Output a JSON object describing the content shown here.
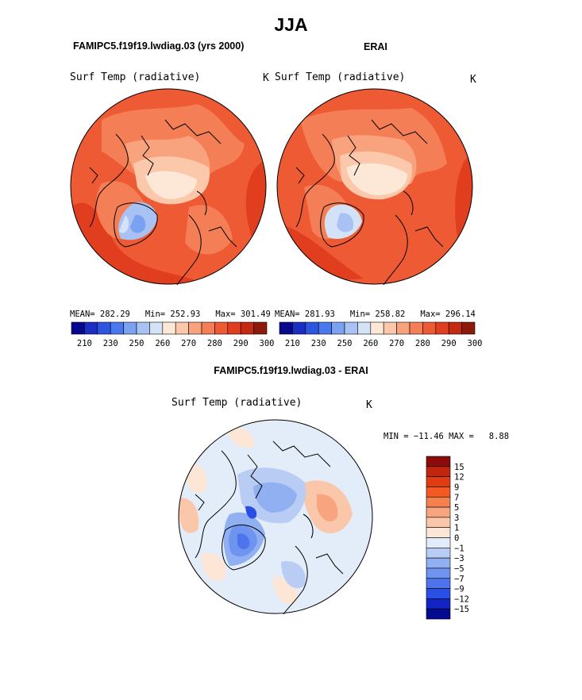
{
  "season": "JJA",
  "panels": [
    {
      "title": "FAMIPC5.f19f19.lwdiag.03 (yrs 2000)",
      "variable": "Surf Temp (radiative)",
      "units": "K",
      "stats": "MEAN= 282.29   Min= 252.93   Max= 301.49"
    },
    {
      "title": "ERAI",
      "variable": "Surf Temp (radiative)",
      "units": "K",
      "stats": "MEAN= 281.93   Min= 258.82   Max= 296.14"
    }
  ],
  "diff_panel": {
    "title": "FAMIPC5.f19f19.lwdiag.03 - ERAI",
    "variable": "Surf Temp (radiative)",
    "units": "K",
    "minmax": "MIN = −11.46 MAX =   8.88"
  },
  "abs_colorbar": {
    "colors": [
      "#08088c",
      "#1a2fc2",
      "#2d55e0",
      "#4a78ee",
      "#7ba1f2",
      "#a8c2f4",
      "#d4e2f7",
      "#fde8d8",
      "#fbc8ab",
      "#f8a37e",
      "#f47e55",
      "#ee5a33",
      "#e03e1e",
      "#c42a12",
      "#8c1a0a"
    ],
    "labels": [
      "210",
      "230",
      "250",
      "260",
      "270",
      "280",
      "290",
      "300"
    ]
  },
  "diff_colorbar": {
    "colors": [
      "#8c0c0c",
      "#c0260e",
      "#e03c12",
      "#f35a23",
      "#f6804e",
      "#f8a47e",
      "#fbc7ab",
      "#fde6d6",
      "#e3edfa",
      "#b9cdf4",
      "#91b0f2",
      "#6f94f0",
      "#4d74ec",
      "#2a4fe4",
      "#1224c6",
      "#060a8e"
    ],
    "labels": [
      "15",
      "12",
      "9",
      "7",
      "5",
      "3",
      "1",
      "0",
      "−1",
      "−3",
      "−5",
      "−7",
      "−9",
      "−12",
      "−15"
    ]
  },
  "chart_data": [
    {
      "type": "heatmap",
      "projection": "north-polar-stereographic",
      "title": "FAMIPC5.f19f19.lwdiag.03 (yrs 2000)",
      "subtitle": "Surf Temp (radiative)",
      "units": "K",
      "mean": 282.29,
      "min": 252.93,
      "max": 301.49,
      "levels": [
        210,
        220,
        230,
        240,
        250,
        255,
        260,
        265,
        270,
        275,
        280,
        285,
        290,
        295,
        300
      ]
    },
    {
      "type": "heatmap",
      "projection": "north-polar-stereographic",
      "title": "ERAI",
      "subtitle": "Surf Temp (radiative)",
      "units": "K",
      "mean": 281.93,
      "min": 258.82,
      "max": 296.14,
      "levels": [
        210,
        220,
        230,
        240,
        250,
        255,
        260,
        265,
        270,
        275,
        280,
        285,
        290,
        295,
        300
      ]
    },
    {
      "type": "heatmap",
      "projection": "north-polar-stereographic",
      "title": "FAMIPC5.f19f19.lwdiag.03 - ERAI",
      "subtitle": "Surf Temp (radiative)",
      "units": "K",
      "min": -11.46,
      "max": 8.88,
      "levels": [
        -15,
        -12,
        -9,
        -7,
        -5,
        -3,
        -1,
        0,
        1,
        3,
        5,
        7,
        9,
        12,
        15
      ]
    }
  ]
}
